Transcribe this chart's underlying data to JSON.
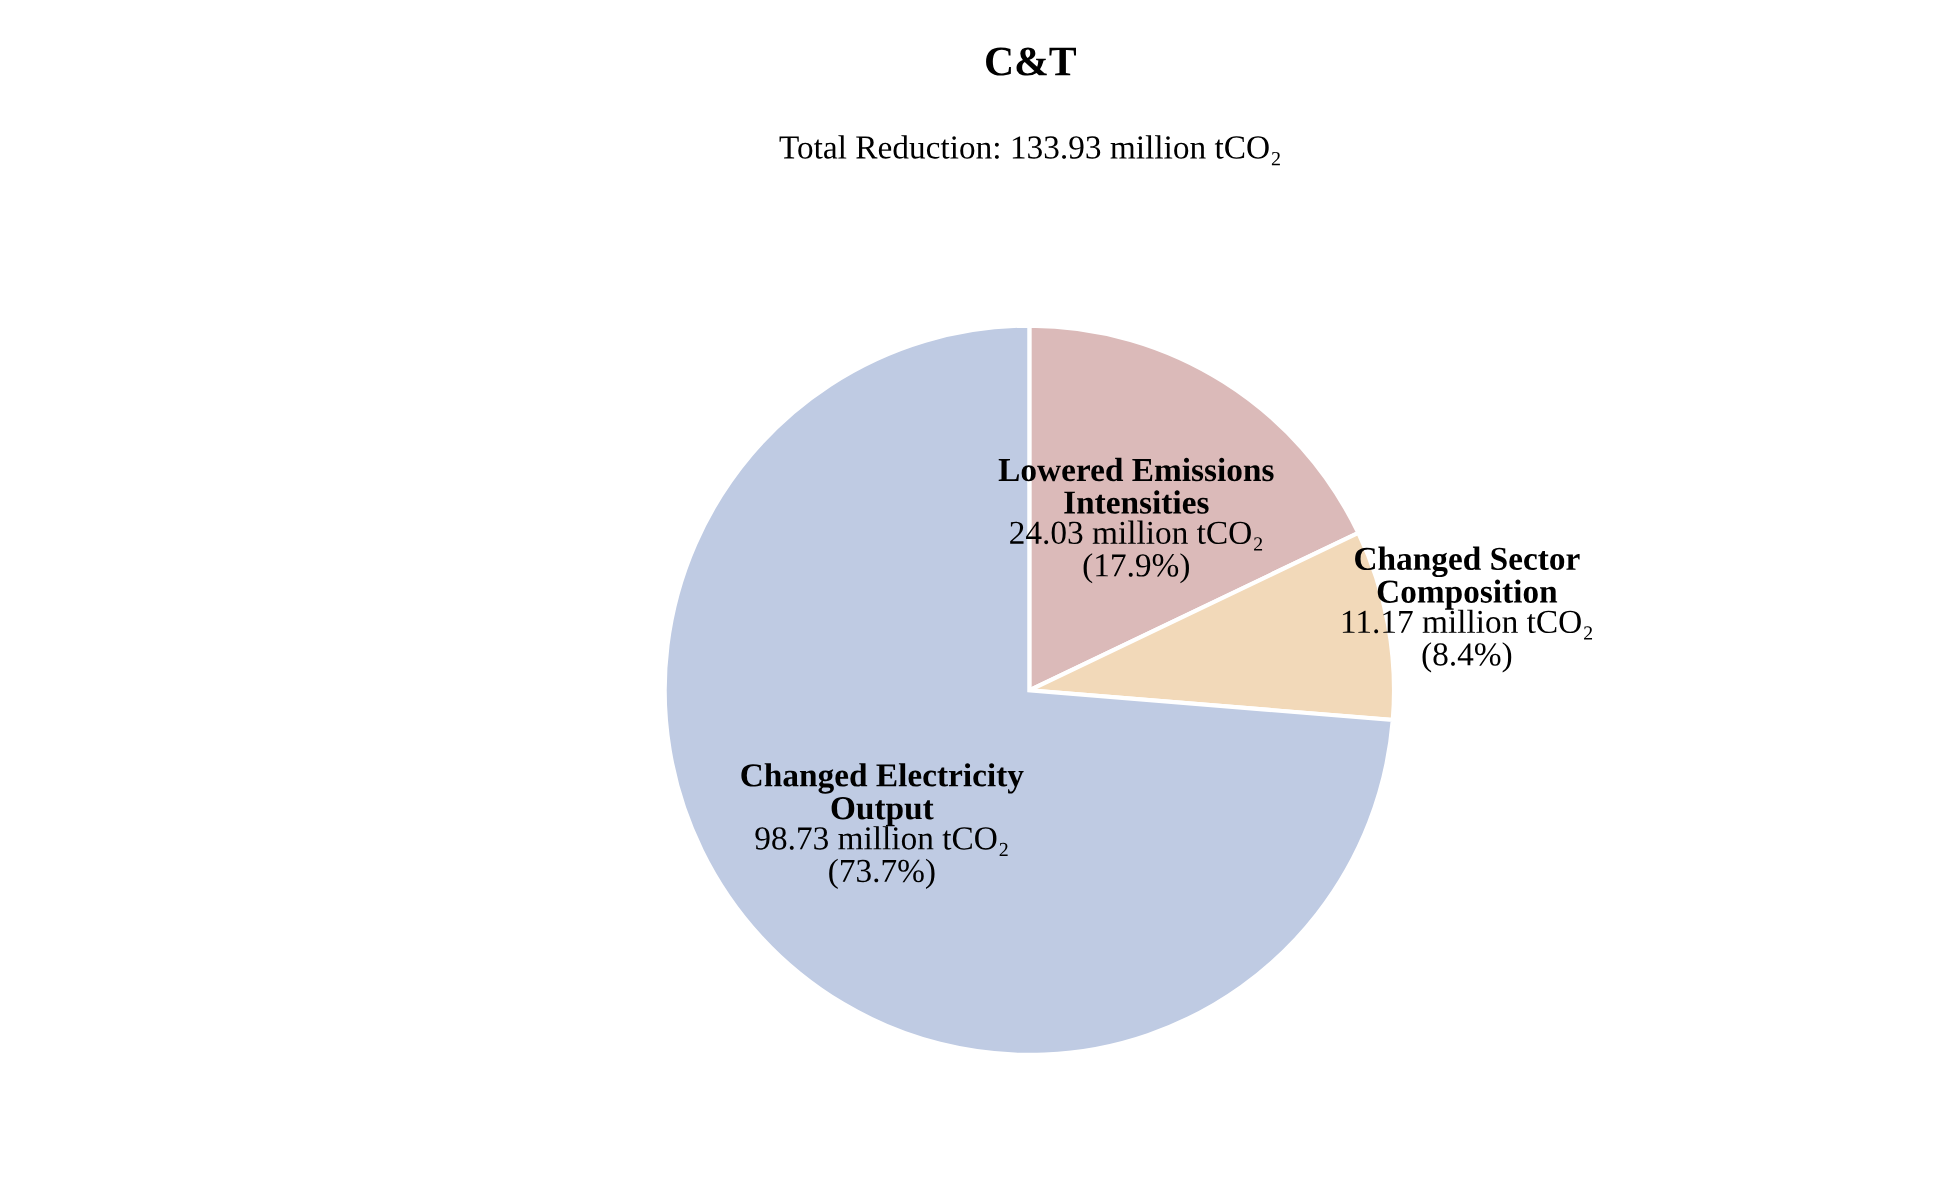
{
  "chart_data": {
    "type": "pie",
    "title": "C&T",
    "subtitle": "Total Reduction: 133.93 million tCO₂",
    "categories": [
      "Lowered Emissions\nIntensities",
      "Changed Sector\nComposition",
      "Changed Electricity\nOutput"
    ],
    "values": [
      17.9,
      8.4,
      73.7
    ],
    "colors": [
      "#dbbab9",
      "#f2d9b9",
      "#bfcbe3"
    ],
    "value_labels": [
      "24.03 million tCO₂\n(17.9%)",
      "11.17 million tCO₂\n(8.4%)",
      "98.73 million tCO₂\n(73.7%)"
    ]
  }
}
